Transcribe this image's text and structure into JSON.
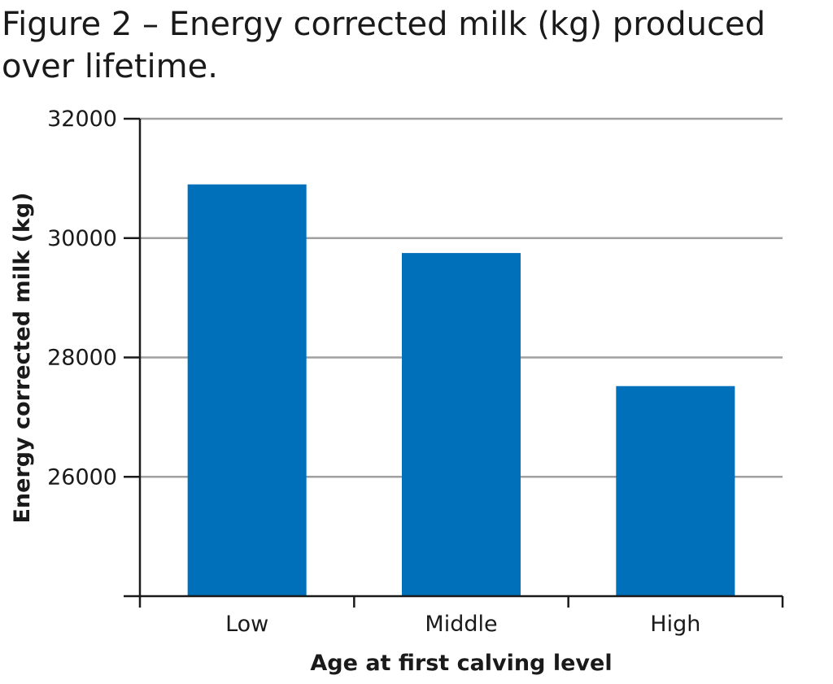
{
  "chart_data": {
    "type": "bar",
    "title": "Figure 2 – Energy corrected milk (kg) produced over lifetime.",
    "xlabel": "Age at first calving level",
    "ylabel": "Energy corrected milk (kg)",
    "categories": [
      "Low",
      "Middle",
      "High"
    ],
    "values": [
      30900,
      29750,
      27520
    ],
    "ylim": [
      24000,
      32000
    ],
    "yticks": [
      26000,
      28000,
      30000,
      32000
    ],
    "grid": true,
    "legend": "none",
    "bar_color": "#0070bb",
    "grid_color": "#a0a0a0",
    "axis_color": "#1a1a1a"
  }
}
